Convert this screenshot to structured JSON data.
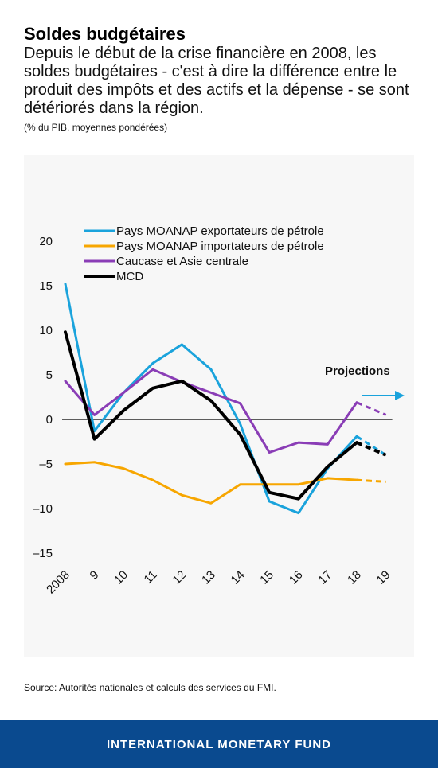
{
  "header": {
    "title": "Soldes budgétaires",
    "subtitle": "Depuis le début de la crise financière en 2008, les soldes budgétaires - c'est à dire la différence entre le produit des impôts et des actifs et la dépense - se sont détériorés dans la région.",
    "note": "(% du PIB, moyennes pondérées)"
  },
  "source": "Source: Autorités nationales et calculs des services du FMI.",
  "footer": {
    "brand": "INTERNATIONAL MONETARY FUND"
  },
  "chart_data": {
    "type": "line",
    "title": "",
    "xlabel": "",
    "ylabel": "",
    "categories": [
      "2008",
      "9",
      "10",
      "11",
      "12",
      "13",
      "14",
      "15",
      "16",
      "17",
      "18",
      "19"
    ],
    "y_ticks": [
      "20",
      "15",
      "10",
      "5",
      "0",
      "–5",
      "–10",
      "–15"
    ],
    "ylim": [
      -15,
      20
    ],
    "projections_label": "Projections",
    "projection_start_index": 10,
    "legend_position": "top-left",
    "grid": false,
    "series": [
      {
        "name": "Pays MOANAP exportateurs de pétrole",
        "color": "#1aa3dc",
        "width": 3,
        "values": [
          15.2,
          -1.3,
          3.0,
          6.3,
          8.4,
          5.6,
          -0.5,
          -9.2,
          -10.5,
          -5.5,
          -1.9,
          -4.0
        ]
      },
      {
        "name": "Pays MOANAP importateurs de pétrole",
        "color": "#f7a600",
        "width": 3,
        "values": [
          -5.0,
          -4.8,
          -5.5,
          -6.8,
          -8.5,
          -9.4,
          -7.3,
          -7.3,
          -7.3,
          -6.6,
          -6.8,
          -7.0
        ]
      },
      {
        "name": "Caucase et Asie centrale",
        "color": "#8a3db6",
        "width": 3,
        "values": [
          4.3,
          0.5,
          3.0,
          5.6,
          4.2,
          3.0,
          1.8,
          -3.7,
          -2.6,
          -2.8,
          1.9,
          0.5
        ]
      },
      {
        "name": "MCD",
        "color": "#000000",
        "width": 4,
        "values": [
          9.8,
          -2.2,
          1.0,
          3.5,
          4.3,
          2.1,
          -1.7,
          -8.2,
          -8.9,
          -5.3,
          -2.6,
          -4.0
        ]
      }
    ]
  }
}
